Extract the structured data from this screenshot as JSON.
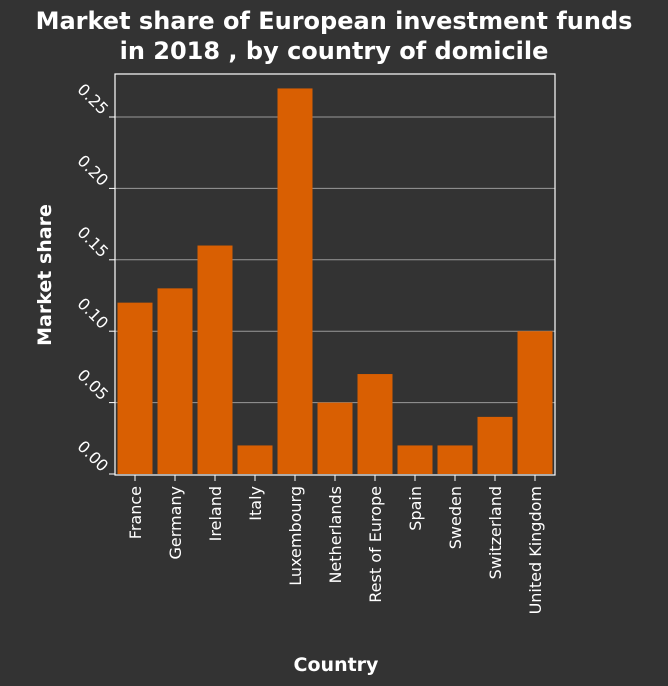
{
  "chart_data": {
    "type": "bar",
    "title_lines": [
      "Market share of European investment funds",
      "in 2018 , by country of domicile"
    ],
    "xlabel": "Country",
    "ylabel": "Market share",
    "categories": [
      "France",
      "Germany",
      "Ireland",
      "Italy",
      "Luxembourg",
      "Netherlands",
      "Rest of Europe",
      "Spain",
      "Sweden",
      "Switzerland",
      "United Kingdom"
    ],
    "values": [
      0.12,
      0.13,
      0.16,
      0.02,
      0.27,
      0.05,
      0.07,
      0.02,
      0.02,
      0.04,
      0.1
    ],
    "yticks": [
      "0.00",
      "0.05",
      "0.10",
      "0.15",
      "0.20",
      "0.25"
    ],
    "ylim": [
      0,
      0.28
    ],
    "grid": true,
    "colors": {
      "bar": "#d95f02",
      "background": "#333333",
      "grid": "#999999",
      "text": "#ffffff"
    }
  }
}
